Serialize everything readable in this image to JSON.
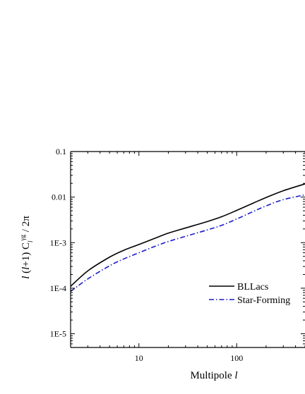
{
  "chart_data": {
    "type": "line",
    "xlabel": "Multipole l",
    "ylabel": "l (l+1) C_l^{γg} / 2π",
    "x_scale": "log",
    "y_scale": "log",
    "xlim": [
      2,
      500
    ],
    "ylim": [
      5e-06,
      0.1
    ],
    "x_ticks": [
      {
        "value": 10,
        "label": "10"
      },
      {
        "value": 100,
        "label": "100"
      }
    ],
    "y_ticks": [
      {
        "value": 0.1,
        "label": "0.1"
      },
      {
        "value": 0.01,
        "label": "0.01"
      },
      {
        "value": 0.001,
        "label": "1E-3"
      },
      {
        "value": 0.0001,
        "label": "1E-4"
      },
      {
        "value": 1e-05,
        "label": "1E-5"
      }
    ],
    "legend_position": "center-right",
    "series": [
      {
        "name": "BLLacs",
        "style": "solid",
        "color": "#000000",
        "x": [
          2,
          3,
          5,
          7,
          10,
          15,
          20,
          30,
          50,
          70,
          100,
          150,
          200,
          300,
          500
        ],
        "y": [
          0.00011,
          0.00024,
          0.00048,
          0.00068,
          0.00091,
          0.00128,
          0.00162,
          0.0021,
          0.0029,
          0.0037,
          0.0051,
          0.0075,
          0.0098,
          0.0138,
          0.0195
        ]
      },
      {
        "name": "Star-Forming",
        "style": "dash-dot",
        "color": "#1a1acc",
        "x": [
          2,
          3,
          5,
          7,
          10,
          15,
          20,
          30,
          50,
          70,
          100,
          150,
          200,
          300,
          500
        ],
        "y": [
          8.5e-05,
          0.00016,
          0.00031,
          0.00044,
          0.0006,
          0.00085,
          0.00106,
          0.00138,
          0.0019,
          0.0024,
          0.0033,
          0.0049,
          0.0064,
          0.0088,
          0.0112
        ]
      }
    ]
  }
}
